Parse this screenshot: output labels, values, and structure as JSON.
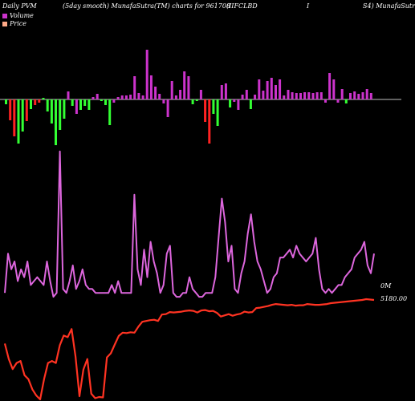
{
  "header": {
    "left": "Daily PVM",
    "center": "(5day smooth) MunafaSutra(TM) charts for 961708",
    "right1": "(IIFCLBD",
    "right2": "I",
    "right3": "S4) MunafaSutr"
  },
  "legend": [
    {
      "label": "Volume",
      "color": "#cc33cc"
    },
    {
      "label": "Price",
      "color": "#ffaa88"
    }
  ],
  "labels": {
    "volume_value": "0M",
    "price_value": "5180.00"
  },
  "colors": {
    "up": "#cc33cc",
    "green": "#33ff33",
    "red": "#ff2222",
    "volume_line": "#dd66dd",
    "price_line": "#ff3322",
    "background": "#000000"
  },
  "chart_data": {
    "type": "bar",
    "title": "",
    "bars": {
      "baseline": 0,
      "values": [
        -6,
        -26,
        -46,
        -55,
        -40,
        -27,
        -12,
        -7,
        -4,
        2,
        -15,
        -30,
        -57,
        -38,
        -24,
        10,
        -8,
        -18,
        -13,
        -8,
        -13,
        3,
        7,
        -2,
        -7,
        -32,
        -4,
        3,
        5,
        5,
        6,
        29,
        8,
        5,
        62,
        30,
        16,
        7,
        -5,
        -22,
        23,
        5,
        12,
        35,
        29,
        -6,
        -2,
        12,
        -28,
        -55,
        -18,
        -33,
        18,
        20,
        -10,
        -3,
        -13,
        6,
        12,
        -12,
        6,
        25,
        11,
        23,
        27,
        18,
        25,
        5,
        12,
        9,
        8,
        8,
        9,
        9,
        8,
        9,
        9,
        -4,
        33,
        25,
        -4,
        13,
        -5,
        8,
        10,
        7,
        9,
        13,
        8
      ],
      "colors": [
        "g",
        "r",
        "r",
        "g",
        "g",
        "r",
        "g",
        "r",
        "r",
        "g",
        "g",
        "g",
        "g",
        "g",
        "g",
        "m",
        "g",
        "m",
        "g",
        "g",
        "g",
        "m",
        "m",
        "g",
        "g",
        "g",
        "m",
        "m",
        "m",
        "m",
        "m",
        "m",
        "m",
        "m",
        "m",
        "m",
        "m",
        "m",
        "m",
        "m",
        "m",
        "m",
        "m",
        "m",
        "m",
        "g",
        "g",
        "m",
        "r",
        "r",
        "g",
        "g",
        "m",
        "m",
        "g",
        "m",
        "m",
        "m",
        "m",
        "g",
        "m",
        "m",
        "m",
        "m",
        "m",
        "m",
        "m",
        "m",
        "m",
        "m",
        "m",
        "m",
        "m",
        "m",
        "m",
        "m",
        "m",
        "m",
        "m",
        "m",
        "m",
        "m",
        "g",
        "m",
        "m",
        "m",
        "m",
        "m",
        "m"
      ]
    },
    "series": [
      {
        "name": "Volume",
        "values": [
          2,
          12,
          8,
          10,
          5,
          8,
          6,
          10,
          4,
          5,
          6,
          5,
          4,
          10,
          5,
          1,
          2,
          38,
          3,
          2,
          5,
          9,
          3,
          5,
          8,
          4,
          3,
          3,
          2,
          2,
          2,
          2,
          2,
          4,
          2,
          5,
          2,
          2,
          2,
          2,
          27,
          8,
          4,
          13,
          6,
          15,
          10,
          7,
          2,
          4,
          12,
          14,
          2,
          1,
          1,
          2,
          2,
          6,
          3,
          2,
          1,
          1,
          2,
          2,
          2,
          6,
          16,
          26,
          20,
          10,
          14,
          3,
          2,
          7,
          10,
          17,
          22,
          15,
          10,
          8,
          5,
          2,
          3,
          6,
          7,
          11,
          11,
          12,
          13,
          11,
          14,
          12,
          11,
          10,
          11,
          12,
          16,
          8,
          3,
          2,
          3,
          2,
          3,
          4,
          4,
          6,
          7,
          8,
          11,
          12,
          13,
          15,
          9,
          7,
          12
        ]
      },
      {
        "name": "Price",
        "values": [
          5180.0,
          4800,
          4550,
          4700,
          4750,
          4400,
          4300,
          4050,
          3900,
          3800,
          4300,
          4700,
          4750,
          4700,
          5140,
          5380,
          5340,
          5540,
          4860,
          3880,
          4540,
          4800,
          3940,
          3830,
          3860,
          3850,
          4840,
          4940,
          5160,
          5370,
          5450,
          5440,
          5460,
          5450,
          5600,
          5720,
          5740,
          5760,
          5770,
          5740,
          5900,
          5910,
          5960,
          5950,
          5960,
          5970,
          5990,
          6000,
          5990,
          5950,
          6000,
          6010,
          5980,
          5990,
          5940,
          5850,
          5880,
          5910,
          5870,
          5900,
          5920,
          5970,
          5950,
          5960,
          6060,
          6070,
          6090,
          6110,
          6140,
          6160,
          6150,
          6140,
          6130,
          6140,
          6120,
          6130,
          6130,
          6160,
          6150,
          6140,
          6140,
          6150,
          6160,
          6180,
          6190,
          6200,
          6210,
          6220,
          6230,
          6240,
          6250,
          6260,
          6280,
          6270,
          6260
        ]
      }
    ]
  }
}
